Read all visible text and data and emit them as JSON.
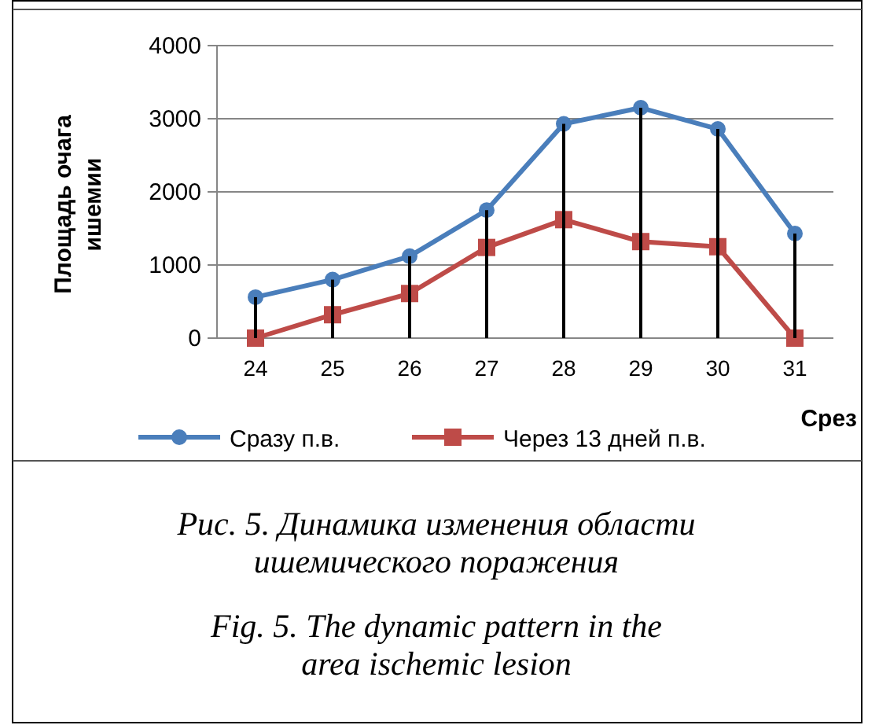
{
  "chart_data": {
    "type": "line",
    "xlabel": "Срез",
    "ylabel": "Площадь очага ишемии",
    "categories": [
      "24",
      "25",
      "26",
      "27",
      "28",
      "29",
      "30",
      "31"
    ],
    "series": [
      {
        "name": "Сразу п.в.",
        "color": "#4a7ebb",
        "marker": "circle",
        "values": [
          560,
          800,
          1120,
          1750,
          2930,
          3150,
          2860,
          1430
        ]
      },
      {
        "name": "Через 13 дней п.в.",
        "color": "#be4b48",
        "marker": "square",
        "values": [
          0,
          320,
          610,
          1240,
          1620,
          1320,
          1250,
          0
        ]
      },
      {
        "type": "bar",
        "color": "#000000",
        "values": [
          560,
          800,
          1120,
          1750,
          2930,
          3150,
          2860,
          1430
        ]
      }
    ],
    "ylim": [
      0,
      4000
    ],
    "yticks": [
      0,
      1000,
      2000,
      3000,
      4000
    ],
    "grid": "y",
    "legend": "bottom",
    "annotations": [
      "Рис. 5. Динамика изменения области ишемического поражения",
      "Fig. 5. The dynamic pattern in the area ischemic lesion"
    ]
  }
}
